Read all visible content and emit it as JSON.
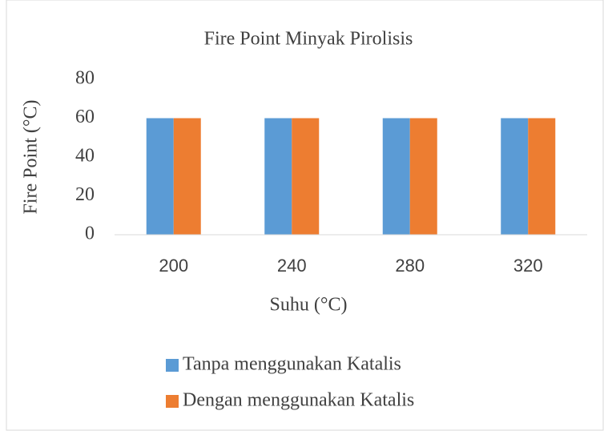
{
  "chart_data": {
    "type": "bar",
    "title": "Fire Point Minyak Pirolisis",
    "x_label": "Suhu (°C)",
    "y_label": "Fire Point (°C)",
    "categories": [
      "200",
      "240",
      "280",
      "320"
    ],
    "series": [
      {
        "name": "Tanpa menggunakan Katalis",
        "color": "#5b9bd5",
        "values": [
          60,
          60,
          60,
          60
        ]
      },
      {
        "name": "Dengan menggunakan Katalis",
        "color": "#ed7d31",
        "values": [
          60,
          60,
          60,
          60
        ]
      }
    ],
    "ylim": [
      0,
      80
    ],
    "yticks": [
      0,
      20,
      40,
      60,
      80
    ],
    "grid": false,
    "legend": "bottom"
  }
}
